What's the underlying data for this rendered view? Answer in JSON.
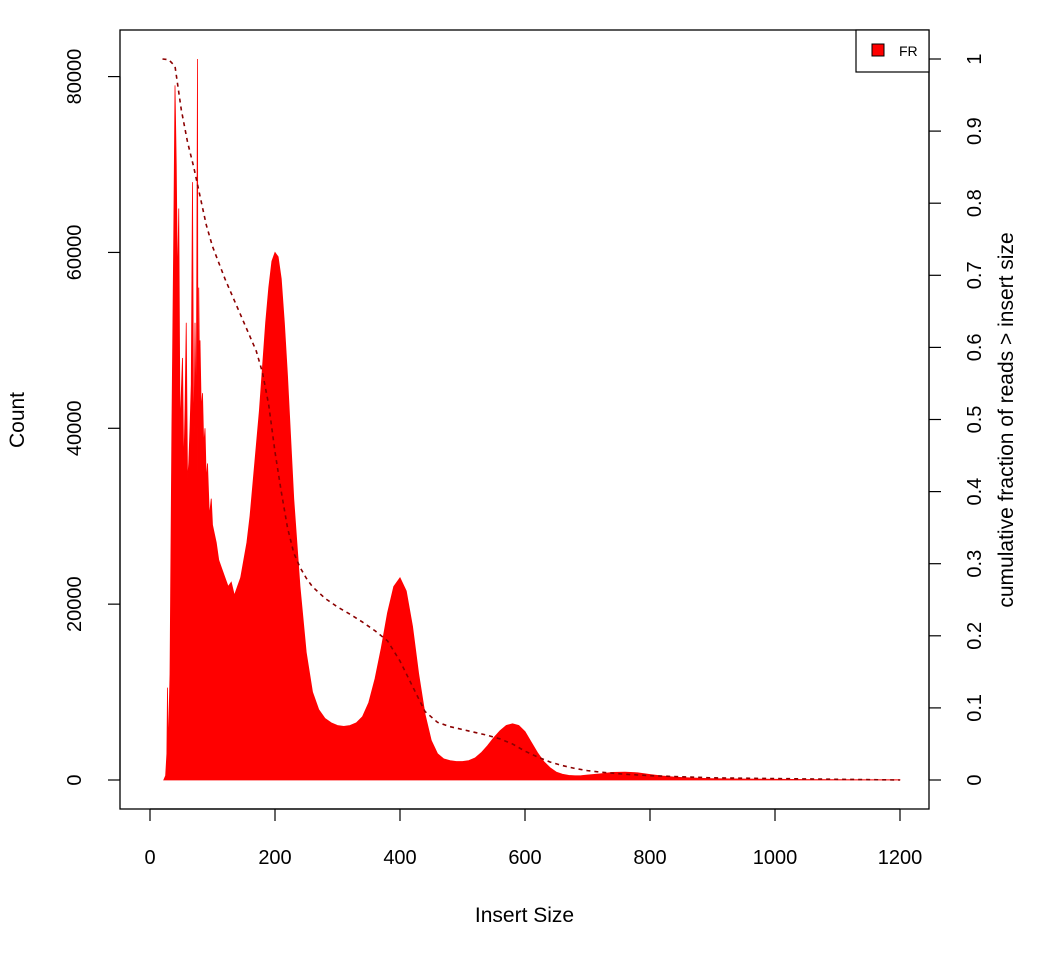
{
  "chart_data": {
    "type": "area",
    "title": "",
    "xlabel": "Insert Size",
    "ylabel": "Count",
    "y2label": "cumulative fraction of reads > insert size",
    "xlim": [
      0,
      1200
    ],
    "ylim": [
      0,
      82000
    ],
    "y2lim": [
      0,
      1
    ],
    "x_ticks": [
      0,
      200,
      400,
      600,
      800,
      1000,
      1200
    ],
    "y_ticks": [
      0,
      20000,
      40000,
      60000,
      80000
    ],
    "y2_ticks": [
      0,
      0.1,
      0.2,
      0.3,
      0.4,
      0.5,
      0.6,
      0.7,
      0.8,
      0.9,
      1
    ],
    "y2_tick_labels": [
      "0",
      "0.1",
      "0.2",
      "0.3",
      "0.4",
      "0.5",
      "0.6",
      "0.7",
      "0.8",
      "0.9",
      "1"
    ],
    "grid": false,
    "legend": {
      "position": "top-right",
      "entries": [
        "FR"
      ]
    },
    "series": [
      {
        "name": "FR",
        "kind": "histogram",
        "color": "#ff0000",
        "x": [
          22,
          25,
          27,
          28,
          29,
          30,
          32,
          35,
          38,
          40,
          42,
          44,
          46,
          48,
          50,
          52,
          54,
          56,
          58,
          60,
          62,
          64,
          66,
          68,
          70,
          72,
          74,
          76,
          77,
          78,
          79,
          80,
          82,
          84,
          86,
          88,
          90,
          92,
          95,
          98,
          100,
          103,
          106,
          110,
          115,
          120,
          125,
          130,
          135,
          140,
          145,
          150,
          155,
          160,
          165,
          170,
          175,
          180,
          185,
          190,
          195,
          200,
          205,
          210,
          215,
          220,
          225,
          230,
          240,
          250,
          260,
          270,
          280,
          290,
          300,
          310,
          320,
          330,
          340,
          350,
          360,
          370,
          380,
          390,
          400,
          410,
          420,
          430,
          440,
          450,
          460,
          470,
          480,
          490,
          500,
          510,
          520,
          530,
          540,
          550,
          560,
          570,
          580,
          590,
          600,
          610,
          620,
          630,
          640,
          650,
          660,
          670,
          680,
          690,
          700,
          720,
          740,
          760,
          780,
          800,
          820,
          840,
          860,
          880,
          900,
          950,
          1000,
          1050,
          1100,
          1150,
          1200
        ],
        "values": [
          0,
          500,
          3000,
          10500,
          4000,
          6000,
          12000,
          40000,
          62000,
          79000,
          70000,
          56000,
          65000,
          40000,
          44000,
          48000,
          35000,
          42000,
          52000,
          34000,
          36000,
          40000,
          45000,
          68000,
          36000,
          52000,
          40000,
          82000,
          20000,
          56000,
          48000,
          50000,
          42000,
          44000,
          38000,
          40000,
          34000,
          36000,
          30000,
          32000,
          29000,
          28000,
          27000,
          25000,
          24000,
          23000,
          22000,
          22500,
          21000,
          22000,
          23000,
          25000,
          27000,
          30000,
          34000,
          38000,
          42000,
          47000,
          52000,
          56000,
          59000,
          60000,
          59500,
          57000,
          52000,
          46000,
          39000,
          32000,
          22000,
          14500,
          10000,
          8000,
          7000,
          6500,
          6200,
          6100,
          6200,
          6500,
          7200,
          8800,
          11500,
          15000,
          19000,
          22000,
          23000,
          21500,
          17500,
          12000,
          7500,
          4500,
          3000,
          2400,
          2200,
          2100,
          2100,
          2200,
          2500,
          3100,
          3900,
          4800,
          5600,
          6200,
          6400,
          6200,
          5500,
          4300,
          3100,
          2100,
          1400,
          900,
          650,
          520,
          480,
          500,
          560,
          700,
          860,
          900,
          820,
          620,
          450,
          330,
          250,
          200,
          160,
          110,
          80,
          60,
          40,
          30,
          20
        ]
      },
      {
        "name": "cumulative fraction of reads > insert size",
        "kind": "line",
        "style": "dashed",
        "color": "#8b0000",
        "x": [
          20,
          30,
          40,
          45,
          50,
          60,
          70,
          80,
          90,
          100,
          120,
          140,
          160,
          170,
          180,
          190,
          200,
          210,
          220,
          230,
          240,
          250,
          260,
          280,
          300,
          320,
          340,
          360,
          380,
          400,
          420,
          440,
          460,
          480,
          500,
          520,
          540,
          560,
          580,
          600,
          620,
          640,
          660,
          680,
          700,
          720,
          760,
          800,
          900,
          1000,
          1100,
          1200
        ],
        "values": [
          1.0,
          0.999,
          0.99,
          0.96,
          0.93,
          0.885,
          0.85,
          0.81,
          0.77,
          0.74,
          0.695,
          0.655,
          0.615,
          0.595,
          0.565,
          0.52,
          0.455,
          0.4,
          0.35,
          0.315,
          0.295,
          0.28,
          0.268,
          0.252,
          0.24,
          0.23,
          0.219,
          0.207,
          0.193,
          0.165,
          0.13,
          0.095,
          0.08,
          0.074,
          0.07,
          0.066,
          0.062,
          0.057,
          0.05,
          0.04,
          0.032,
          0.025,
          0.02,
          0.016,
          0.013,
          0.011,
          0.008,
          0.006,
          0.003,
          0.002,
          0.001,
          0.0
        ]
      }
    ]
  }
}
